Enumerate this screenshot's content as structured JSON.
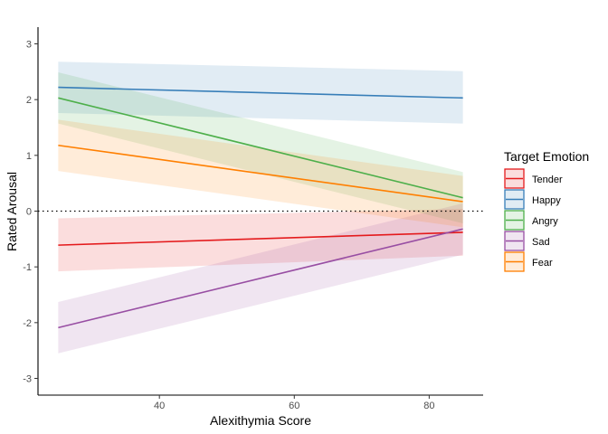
{
  "chart_data": {
    "type": "line",
    "xlabel": "Alexithymia Score",
    "ylabel": "Rated Arousal",
    "xlim": [
      22,
      88
    ],
    "ylim": [
      -3.3,
      3.3
    ],
    "xticks": [
      40,
      60,
      80
    ],
    "yticks": [
      -3,
      -2,
      -1,
      0,
      1,
      2,
      3
    ],
    "reference_line": {
      "y": 0,
      "style": "dotted"
    },
    "legend": {
      "title": "Target Emotion",
      "position": "right"
    },
    "series": [
      {
        "name": "Tender",
        "color": "#E41A1C",
        "x": [
          25,
          85
        ],
        "y": [
          -0.61,
          -0.38
        ],
        "lower": [
          -1.08,
          -0.8
        ],
        "upper": [
          -0.13,
          0.04
        ]
      },
      {
        "name": "Happy",
        "color": "#377EB8",
        "x": [
          25,
          85
        ],
        "y": [
          2.22,
          2.03
        ],
        "lower": [
          1.76,
          1.57
        ],
        "upper": [
          2.68,
          2.51
        ]
      },
      {
        "name": "Angry",
        "color": "#4DAF4A",
        "x": [
          25,
          85
        ],
        "y": [
          2.03,
          0.24
        ],
        "lower": [
          1.57,
          -0.22
        ],
        "upper": [
          2.49,
          0.7
        ]
      },
      {
        "name": "Sad",
        "color": "#984EA3",
        "x": [
          25,
          85
        ],
        "y": [
          -2.09,
          -0.32
        ],
        "lower": [
          -2.55,
          -0.78
        ],
        "upper": [
          -1.63,
          0.14
        ]
      },
      {
        "name": "Fear",
        "color": "#FF7F00",
        "x": [
          25,
          85
        ],
        "y": [
          1.18,
          0.17
        ],
        "lower": [
          0.72,
          -0.29
        ],
        "upper": [
          1.64,
          0.63
        ]
      }
    ]
  }
}
